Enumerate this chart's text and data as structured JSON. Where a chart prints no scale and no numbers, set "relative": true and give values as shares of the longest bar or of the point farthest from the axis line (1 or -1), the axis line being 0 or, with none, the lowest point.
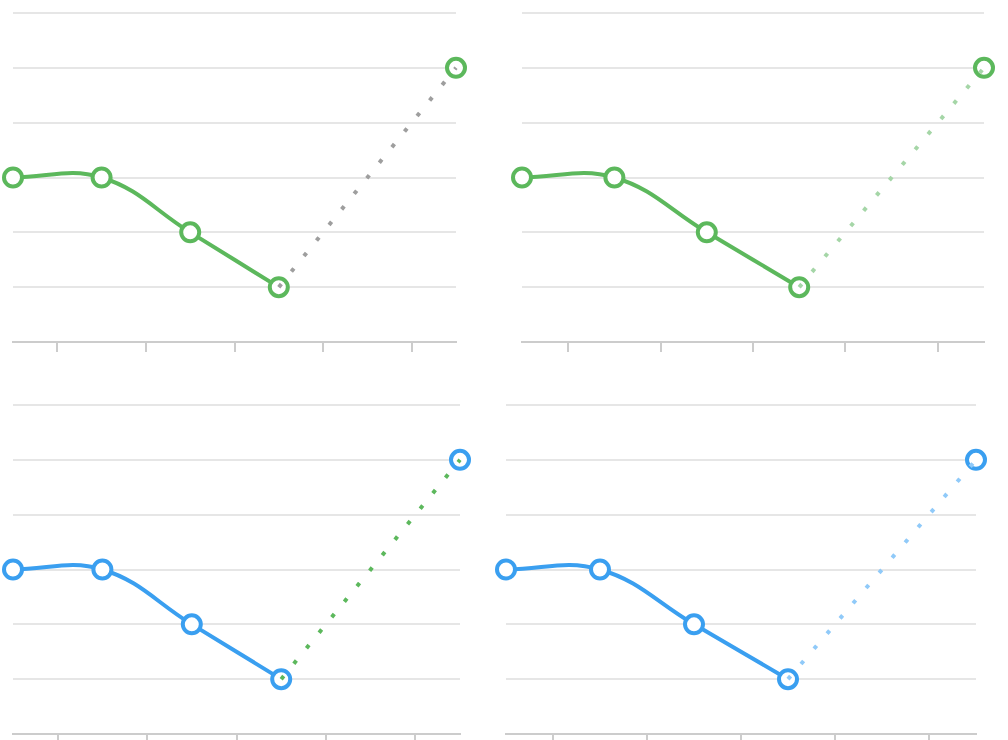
{
  "chart_data": [
    {
      "type": "line",
      "categories": [
        null,
        null,
        null,
        null,
        null,
        null
      ],
      "relative": true,
      "grid": "y",
      "marker": "circle",
      "series": [
        {
          "color": "#5cb85c",
          "values": [
            0.6,
            0.6,
            0.4,
            0.2,
            null,
            1.0
          ],
          "line_style": "solid"
        },
        {
          "color": "#9e9e9e",
          "values": [
            null,
            null,
            null,
            0.2,
            null,
            1.0
          ],
          "line_style": "dotted",
          "marker": "none"
        }
      ]
    },
    {
      "type": "line",
      "categories": [
        null,
        null,
        null,
        null,
        null,
        null
      ],
      "relative": true,
      "grid": "y",
      "marker": "circle",
      "series": [
        {
          "color": "#5cb85c",
          "values": [
            0.6,
            0.6,
            0.4,
            0.2,
            null,
            1.0
          ],
          "line_style": "solid"
        },
        {
          "color": "#a5d6a7",
          "values": [
            null,
            null,
            null,
            0.2,
            null,
            1.0
          ],
          "line_style": "dotted",
          "marker": "none"
        }
      ]
    },
    {
      "type": "line",
      "categories": [
        null,
        null,
        null,
        null,
        null,
        null
      ],
      "relative": true,
      "grid": "y",
      "marker": "circle",
      "series": [
        {
          "color": "#3a9ff0",
          "values": [
            0.6,
            0.6,
            0.4,
            0.2,
            null,
            1.0
          ],
          "line_style": "solid"
        },
        {
          "color": "#5cb85c",
          "values": [
            null,
            null,
            null,
            0.2,
            null,
            1.0
          ],
          "line_style": "dotted",
          "marker": "none"
        }
      ]
    },
    {
      "type": "line",
      "categories": [
        null,
        null,
        null,
        null,
        null,
        null
      ],
      "relative": true,
      "grid": "y",
      "marker": "circle",
      "series": [
        {
          "color": "#3a9ff0",
          "values": [
            0.6,
            0.6,
            0.4,
            0.2,
            null,
            1.0
          ],
          "line_style": "solid"
        },
        {
          "color": "#90caf9",
          "values": [
            null,
            null,
            null,
            0.2,
            null,
            1.0
          ],
          "line_style": "dotted",
          "marker": "none"
        }
      ]
    }
  ]
}
